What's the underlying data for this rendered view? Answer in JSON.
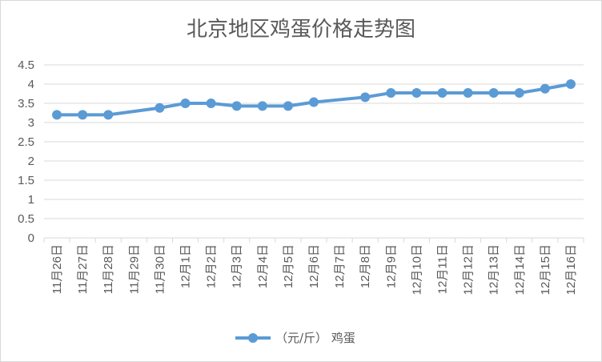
{
  "chart_data": {
    "type": "line",
    "title": "北京地区鸡蛋价格走势图",
    "xlabel": "",
    "ylabel": "",
    "categories": [
      "11月26日",
      "11月27日",
      "11月28日",
      "11月29日",
      "11月30日",
      "12月1日",
      "12月2日",
      "12月3日",
      "12月4日",
      "12月5日",
      "12月6日",
      "12月7日",
      "12月8日",
      "12月9日",
      "12月10日",
      "12月11日",
      "12月12日",
      "12月13日",
      "12月14日",
      "12月15日",
      "12月16日"
    ],
    "series": [
      {
        "name": "（元/斤） 鸡蛋",
        "values": [
          3.2,
          3.2,
          3.2,
          null,
          3.38,
          3.5,
          3.5,
          3.43,
          3.43,
          3.43,
          3.53,
          null,
          3.66,
          3.77,
          3.77,
          3.77,
          3.77,
          3.77,
          3.77,
          3.88,
          4.0
        ]
      }
    ],
    "ylim": [
      0,
      4.5
    ],
    "yticks": [
      "0",
      "0.5",
      "1",
      "1.5",
      "2",
      "2.5",
      "3",
      "3.5",
      "4",
      "4.5"
    ],
    "grid": true,
    "legend_position": "bottom",
    "colors": {
      "series": "#5b9bd5",
      "grid": "#d9d9d9",
      "text": "#595959"
    }
  }
}
